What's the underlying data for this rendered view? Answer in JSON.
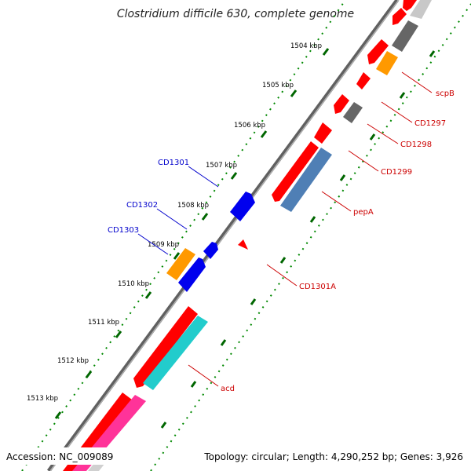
{
  "map": {
    "title": "Clostridium difficile 630, complete genome",
    "accession": "Accession: NC_009089",
    "topology": "Topology: circular; Length: 4,290,252 bp; Genes: 3,926",
    "kbp_ticks": [
      "1504 kbp",
      "1505 kbp",
      "1506 kbp",
      "1507 kbp",
      "1508 kbp",
      "1509 kbp",
      "1510 kbp",
      "1511 kbp",
      "1512 kbp",
      "1513 kbp"
    ],
    "gene_labels_right": [
      "scpB",
      "CD1297",
      "CD1298",
      "CD1299",
      "pepA",
      "CD1301A",
      "acd"
    ],
    "gene_labels_left": [
      "CD1301",
      "CD1302",
      "CD1303"
    ],
    "colors": {
      "backbone": "#808080",
      "gene_forward": "#ff0000",
      "gene_reverse": "#0000ff",
      "orange": "#ff9900",
      "gray": "#666666",
      "light_gray": "#c8c8c8",
      "steel_blue": "#4f7fb5",
      "cyan": "#22cccc",
      "pink": "#ff3399",
      "tick_dots": "#008800"
    }
  }
}
